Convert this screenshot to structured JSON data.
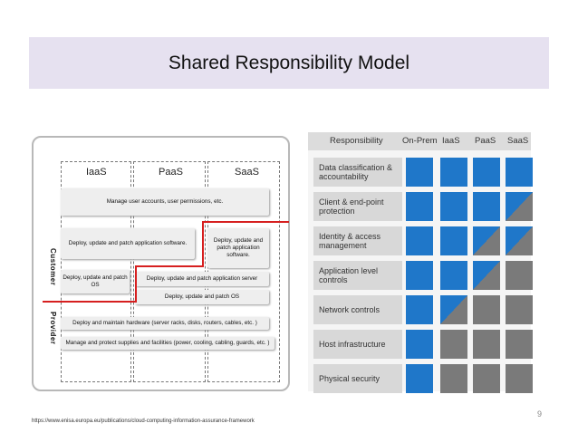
{
  "title": "Shared Responsibility Model",
  "left_diagram": {
    "columns": [
      "IaaS",
      "PaaS",
      "SaaS"
    ],
    "side_labels": {
      "customer": "Customer",
      "provider": "Provider"
    },
    "boxes": {
      "user_accounts": "Manage user accounts, user permissions, etc.",
      "deploy_app_wide": "Deploy, update and patch application software.",
      "deploy_app_saas": "Deploy, update and patch application software.",
      "deploy_os": "Deploy, update and patch OS",
      "deploy_app_server": "Deploy, update and patch application server",
      "deploy_os_wide": "Deploy, update and patch OS",
      "hardware": "Deploy and maintain hardware (server racks, disks, routers, cables, etc. )",
      "facilities": "Manage and protect supplies and facilities (power, cooling, cabling, guards, etc. )"
    }
  },
  "matrix": {
    "headers": [
      "Responsibility",
      "On-Prem",
      "IaaS",
      "PaaS",
      "SaaS"
    ],
    "colors": {
      "customer": "#1f77c9",
      "provider": "#7a7a7a"
    },
    "rows": [
      {
        "label": "Data classification & accountability",
        "cells": [
          "C",
          "C",
          "C",
          "C"
        ]
      },
      {
        "label": "Client & end-point protection",
        "cells": [
          "C",
          "C",
          "C",
          "S"
        ]
      },
      {
        "label": "Identity & access management",
        "cells": [
          "C",
          "C",
          "S",
          "S"
        ]
      },
      {
        "label": "Application level controls",
        "cells": [
          "C",
          "C",
          "S",
          "P"
        ]
      },
      {
        "label": "Network controls",
        "cells": [
          "C",
          "S",
          "P",
          "P"
        ]
      },
      {
        "label": "Host infrastructure",
        "cells": [
          "C",
          "P",
          "P",
          "P"
        ]
      },
      {
        "label": "Physical security",
        "cells": [
          "C",
          "P",
          "P",
          "P"
        ]
      }
    ]
  },
  "footer_url": "https://www.enisa.europa.eu/publications/cloud-computing-information-assurance-framework",
  "page_number": "9"
}
